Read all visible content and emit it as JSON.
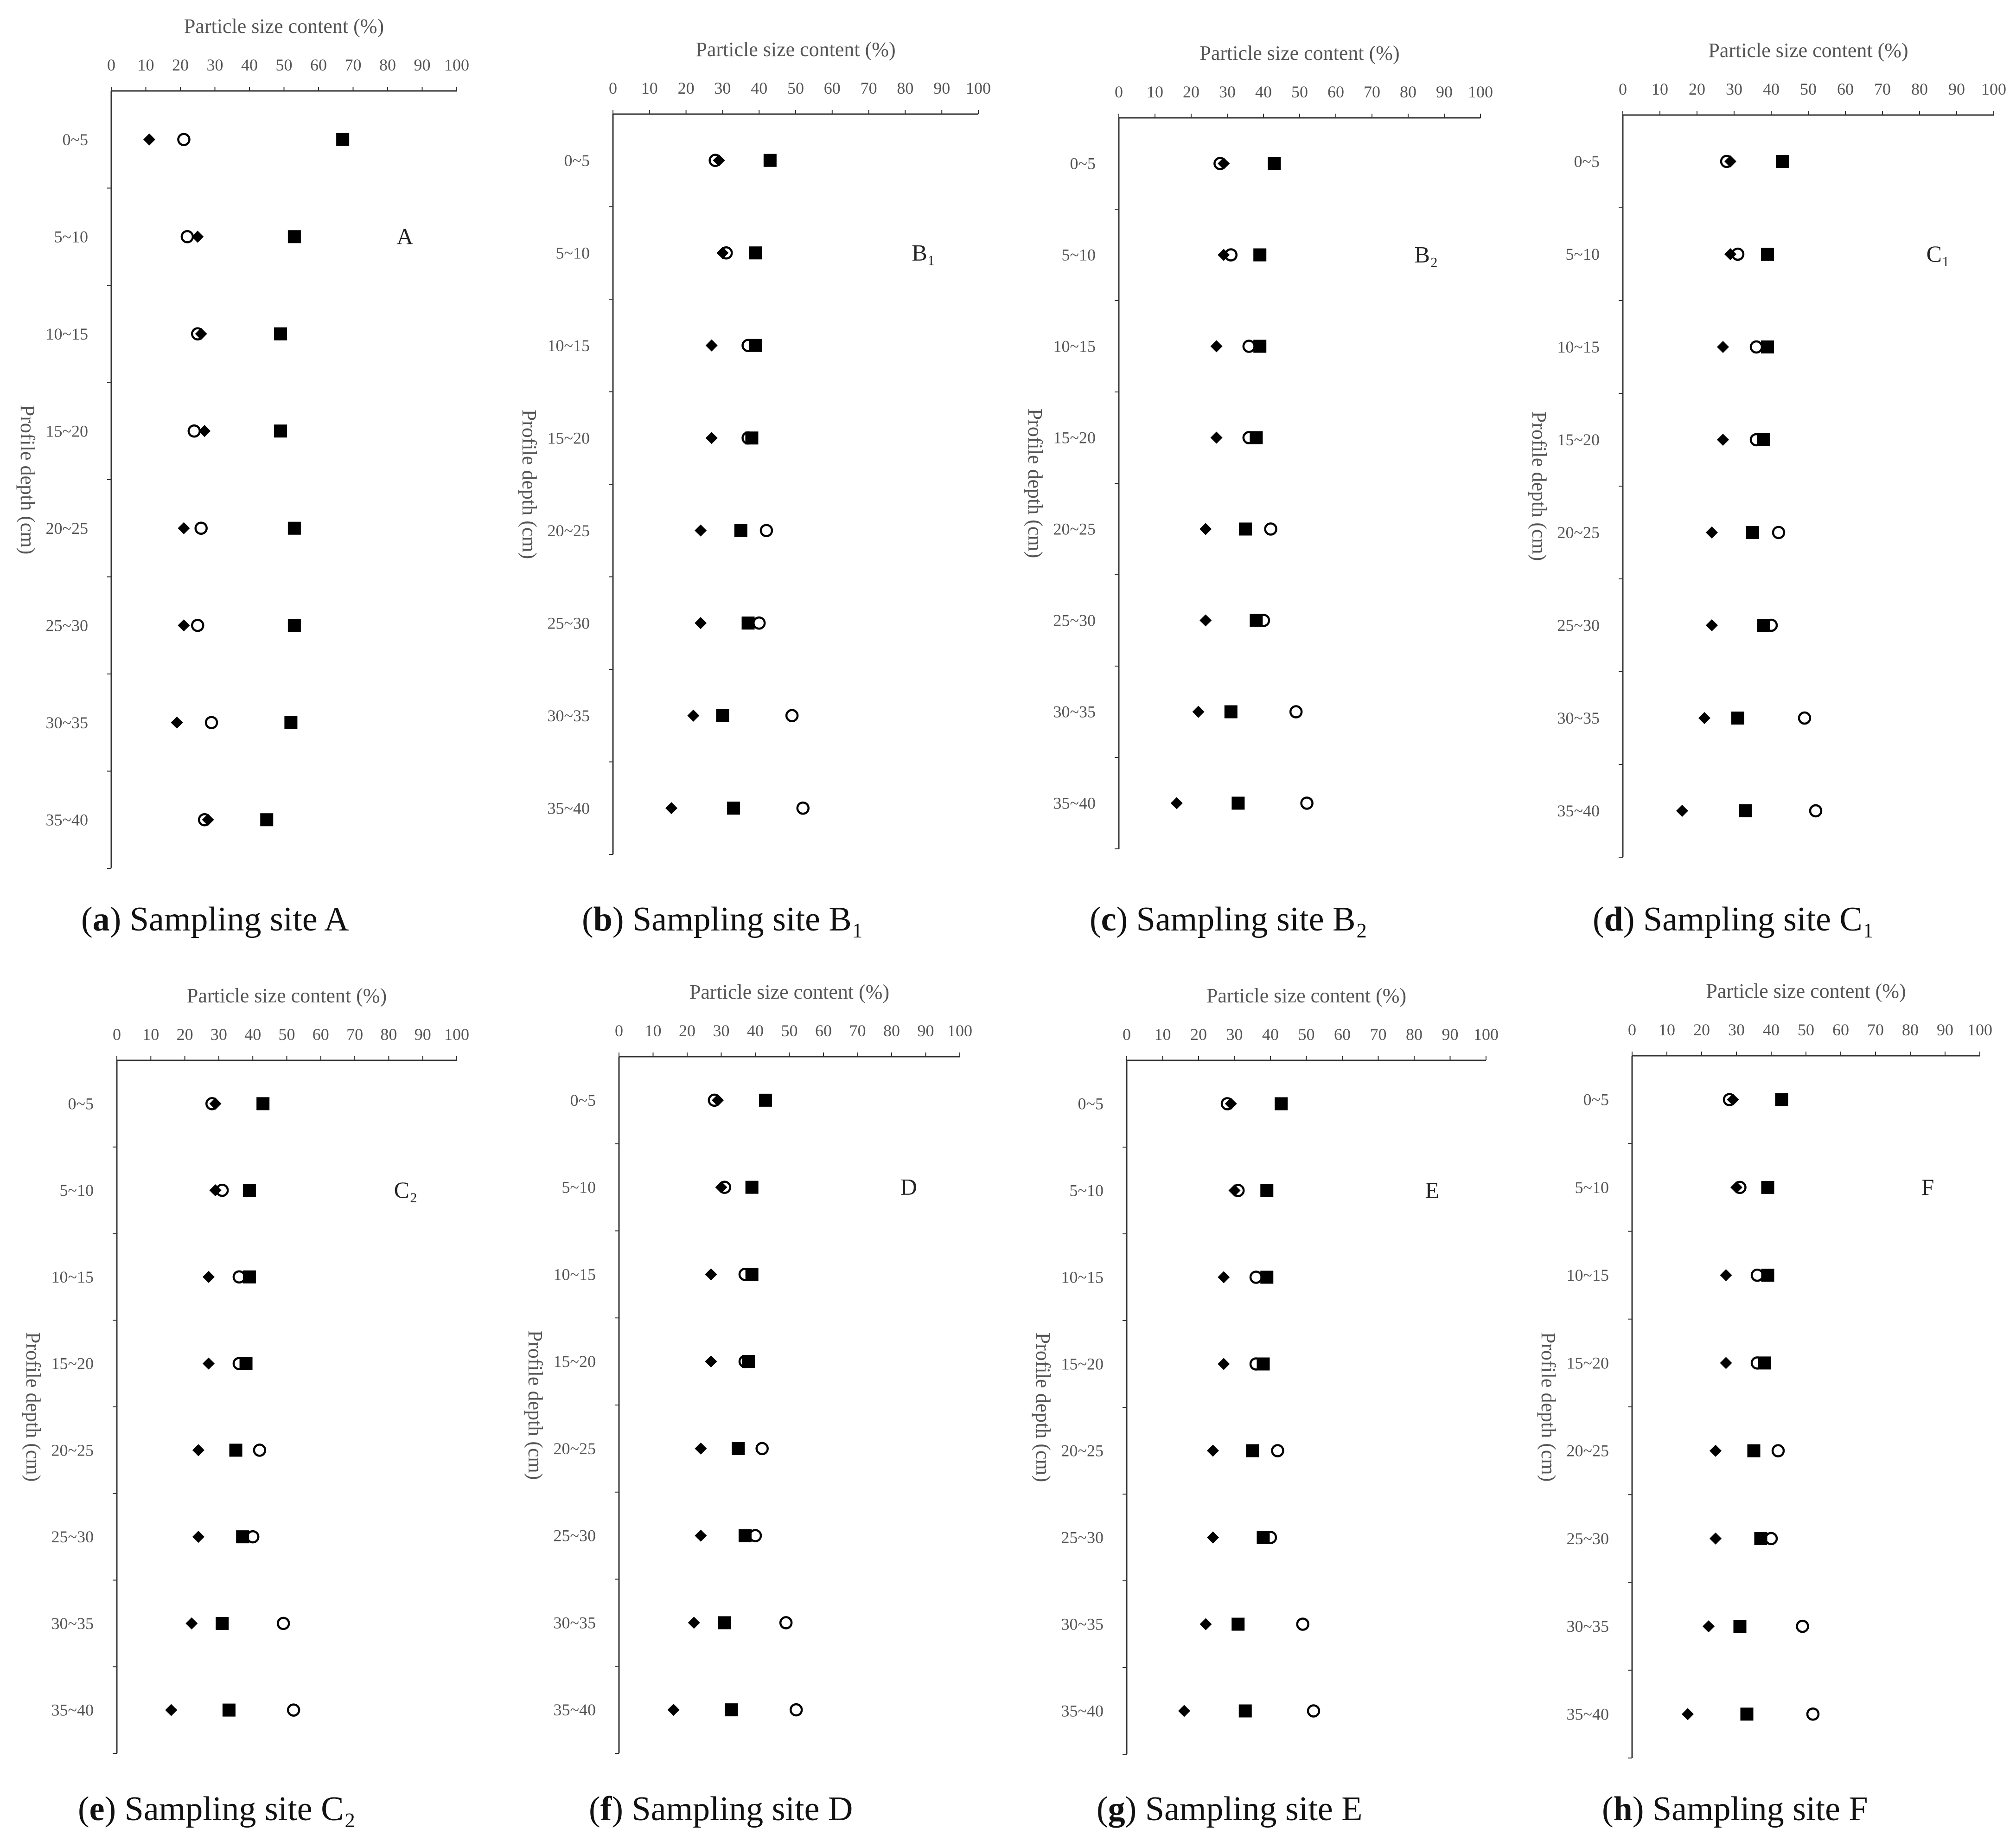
{
  "chart_data": [
    {
      "type": "scatter",
      "panel_letter": "a",
      "caption_text": "Sampling site A",
      "panel_label": "A",
      "xlabel": "Particle size content (%)",
      "ylabel": "Profile depth (cm)",
      "xlim": [
        0,
        100
      ],
      "x_ticks": [
        0,
        10,
        20,
        30,
        40,
        50,
        60,
        70,
        80,
        90,
        100
      ],
      "categories": [
        "0~5",
        "5~10",
        "10~15",
        "15~20",
        "20~25",
        "25~30",
        "30~35",
        "35~40"
      ],
      "legend": "none",
      "series": [
        {
          "marker": "diamond-filled",
          "values": [
            11,
            25,
            26,
            27,
            21,
            21,
            19,
            28
          ]
        },
        {
          "marker": "circle-open",
          "values": [
            21,
            22,
            25,
            24,
            26,
            25,
            29,
            27
          ]
        },
        {
          "marker": "square-filled",
          "values": [
            67,
            53,
            49,
            49,
            53,
            53,
            52,
            45
          ]
        }
      ]
    },
    {
      "type": "scatter",
      "panel_letter": "b",
      "caption_text": "Sampling site B₁",
      "panel_label": "B₁",
      "xlabel": "Particle size content (%)",
      "ylabel": "Profile depth (cm)",
      "xlim": [
        0,
        100
      ],
      "x_ticks": [
        0,
        10,
        20,
        30,
        40,
        50,
        60,
        70,
        80,
        90,
        100
      ],
      "categories": [
        "0~5",
        "5~10",
        "10~15",
        "15~20",
        "20~25",
        "25~30",
        "30~35",
        "35~40"
      ],
      "legend": "none",
      "series": [
        {
          "marker": "diamond-filled",
          "values": [
            29,
            30,
            27,
            27,
            24,
            24,
            22,
            16
          ]
        },
        {
          "marker": "circle-open",
          "values": [
            28,
            31,
            37,
            37,
            42,
            40,
            49,
            52
          ]
        },
        {
          "marker": "square-filled",
          "values": [
            43,
            39,
            39,
            38,
            35,
            37,
            30,
            33
          ]
        }
      ]
    },
    {
      "type": "scatter",
      "panel_letter": "c",
      "caption_text": "Sampling site B₂",
      "panel_label": "B₂",
      "xlabel": "Particle size content (%)",
      "ylabel": "Profile depth (cm)",
      "xlim": [
        0,
        100
      ],
      "x_ticks": [
        0,
        10,
        20,
        30,
        40,
        50,
        60,
        70,
        80,
        90,
        100
      ],
      "categories": [
        "0~5",
        "5~10",
        "10~15",
        "15~20",
        "20~25",
        "25~30",
        "30~35",
        "35~40"
      ],
      "legend": "none",
      "series": [
        {
          "marker": "diamond-filled",
          "values": [
            29,
            29,
            27,
            27,
            24,
            24,
            22,
            16
          ]
        },
        {
          "marker": "circle-open",
          "values": [
            28,
            31,
            36,
            36,
            42,
            40,
            49,
            52
          ]
        },
        {
          "marker": "square-filled",
          "values": [
            43,
            39,
            39,
            38,
            35,
            38,
            31,
            33
          ]
        }
      ]
    },
    {
      "type": "scatter",
      "panel_letter": "d",
      "caption_text": "Sampling site C₁",
      "panel_label": "C₁",
      "xlabel": "Particle size content (%)",
      "ylabel": "Profile depth (cm)",
      "xlim": [
        0,
        100
      ],
      "x_ticks": [
        0,
        10,
        20,
        30,
        40,
        50,
        60,
        70,
        80,
        90,
        100
      ],
      "categories": [
        "0~5",
        "5~10",
        "10~15",
        "15~20",
        "20~25",
        "25~30",
        "30~35",
        "35~40"
      ],
      "legend": "none",
      "series": [
        {
          "marker": "diamond-filled",
          "values": [
            29,
            29,
            27,
            27,
            24,
            24,
            22,
            16
          ]
        },
        {
          "marker": "circle-open",
          "values": [
            28,
            31,
            36,
            36,
            42,
            40,
            49,
            52
          ]
        },
        {
          "marker": "square-filled",
          "values": [
            43,
            39,
            39,
            38,
            35,
            38,
            31,
            33
          ]
        }
      ]
    },
    {
      "type": "scatter",
      "panel_letter": "e",
      "caption_text": "Sampling site C₂",
      "panel_label": "C₂",
      "xlabel": "Particle size content (%)",
      "ylabel": "Profile depth (cm)",
      "xlim": [
        0,
        100
      ],
      "x_ticks": [
        0,
        10,
        20,
        30,
        40,
        50,
        60,
        70,
        80,
        90,
        100
      ],
      "categories": [
        "0~5",
        "5~10",
        "10~15",
        "15~20",
        "20~25",
        "25~30",
        "30~35",
        "35~40"
      ],
      "legend": "none",
      "series": [
        {
          "marker": "diamond-filled",
          "values": [
            29,
            29,
            27,
            27,
            24,
            24,
            22,
            16
          ]
        },
        {
          "marker": "circle-open",
          "values": [
            28,
            31,
            36,
            36,
            42,
            40,
            49,
            52
          ]
        },
        {
          "marker": "square-filled",
          "values": [
            43,
            39,
            39,
            38,
            35,
            37,
            31,
            33
          ]
        }
      ]
    },
    {
      "type": "scatter",
      "panel_letter": "f",
      "caption_text": "Sampling site D",
      "panel_label": "D",
      "xlabel": "Particle size content (%)",
      "ylabel": "Profile depth (cm)",
      "xlim": [
        0,
        100
      ],
      "x_ticks": [
        0,
        10,
        20,
        30,
        40,
        50,
        60,
        70,
        80,
        90,
        100
      ],
      "categories": [
        "0~5",
        "5~10",
        "10~15",
        "15~20",
        "20~25",
        "25~30",
        "30~35",
        "35~40"
      ],
      "legend": "none",
      "series": [
        {
          "marker": "diamond-filled",
          "values": [
            29,
            30,
            27,
            27,
            24,
            24,
            22,
            16
          ]
        },
        {
          "marker": "circle-open",
          "values": [
            28,
            31,
            37,
            37,
            42,
            40,
            49,
            52
          ]
        },
        {
          "marker": "square-filled",
          "values": [
            43,
            39,
            39,
            38,
            35,
            37,
            31,
            33
          ]
        }
      ]
    },
    {
      "type": "scatter",
      "panel_letter": "g",
      "caption_text": "Sampling site E",
      "panel_label": "E",
      "xlabel": "Particle size content (%)",
      "ylabel": "Profile depth (cm)",
      "xlim": [
        0,
        100
      ],
      "x_ticks": [
        0,
        10,
        20,
        30,
        40,
        50,
        60,
        70,
        80,
        90,
        100
      ],
      "categories": [
        "0~5",
        "5~10",
        "10~15",
        "15~20",
        "20~25",
        "25~30",
        "30~35",
        "35~40"
      ],
      "legend": "none",
      "series": [
        {
          "marker": "diamond-filled",
          "values": [
            29,
            30,
            27,
            27,
            24,
            24,
            22,
            16
          ]
        },
        {
          "marker": "circle-open",
          "values": [
            28,
            31,
            36,
            36,
            42,
            40,
            49,
            52
          ]
        },
        {
          "marker": "square-filled",
          "values": [
            43,
            39,
            39,
            38,
            35,
            38,
            31,
            33
          ]
        }
      ]
    },
    {
      "type": "scatter",
      "panel_letter": "h",
      "caption_text": "Sampling site F",
      "panel_label": "F",
      "xlabel": "Particle size content (%)",
      "ylabel": "Profile depth (cm)",
      "xlim": [
        0,
        100
      ],
      "x_ticks": [
        0,
        10,
        20,
        30,
        40,
        50,
        60,
        70,
        80,
        90,
        100
      ],
      "categories": [
        "0~5",
        "5~10",
        "10~15",
        "15~20",
        "20~25",
        "25~30",
        "30~35",
        "35~40"
      ],
      "legend": "none",
      "series": [
        {
          "marker": "diamond-filled",
          "values": [
            29,
            30,
            27,
            27,
            24,
            24,
            22,
            16
          ]
        },
        {
          "marker": "circle-open",
          "values": [
            28,
            31,
            36,
            36,
            42,
            40,
            49,
            52
          ]
        },
        {
          "marker": "square-filled",
          "values": [
            43,
            39,
            39,
            38,
            35,
            37,
            31,
            33
          ]
        }
      ]
    }
  ],
  "colors": {
    "marker": "#000000",
    "axis": "#333333",
    "tick_text": "#555555",
    "caption": "#111111"
  }
}
